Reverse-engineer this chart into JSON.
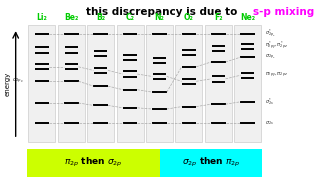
{
  "bg_color": "#ffffff",
  "col_bg": "#f0f0f0",
  "col_edge": "#cccccc",
  "mol_color": "#00cc00",
  "title_prefix": "this discrepancy is due to ",
  "title_sp": "s-p mixing",
  "title_sp_color": "#ff00ff",
  "molecules": [
    "Li₂",
    "Be₂",
    "B₂",
    "C₂",
    "N₂",
    "O₂",
    "F₂",
    "Ne₂"
  ],
  "bottom_left_label": "π₂ₚ then σ₂ₚ",
  "bottom_right_label": "σ₂ₚ then π₂ₚ",
  "bottom_left_color": "#ccff00",
  "bottom_right_color": "#00ffff",
  "left_label": "σ₂ₚₓ",
  "right_labels": [
    "σ*₂ₚₓ",
    "π*₂ₚʸ, π*₂ₚᶜ",
    "π₂ₚʸ, π₂ₚᶜ",
    "σ₂ₚₓ",
    "σ*₂s",
    "σ₂s"
  ],
  "level_data": [
    [
      0.91,
      0.78,
      0.64,
      0.52,
      0.34,
      0.17
    ],
    [
      0.91,
      0.78,
      0.64,
      0.52,
      0.34,
      0.17
    ],
    [
      0.91,
      0.75,
      0.61,
      0.48,
      0.32,
      0.17
    ],
    [
      0.91,
      0.72,
      0.58,
      0.45,
      0.3,
      0.17
    ],
    [
      0.91,
      0.69,
      0.56,
      0.43,
      0.29,
      0.17
    ],
    [
      0.91,
      0.76,
      0.52,
      0.64,
      0.31,
      0.17
    ],
    [
      0.91,
      0.79,
      0.54,
      0.68,
      0.33,
      0.17
    ],
    [
      0.91,
      0.81,
      0.57,
      0.72,
      0.35,
      0.17
    ]
  ],
  "connect_levels": [
    0,
    2,
    3,
    4,
    5
  ],
  "n_cols": 8,
  "fig_width": 3.2,
  "fig_height": 1.8,
  "dpi": 100
}
